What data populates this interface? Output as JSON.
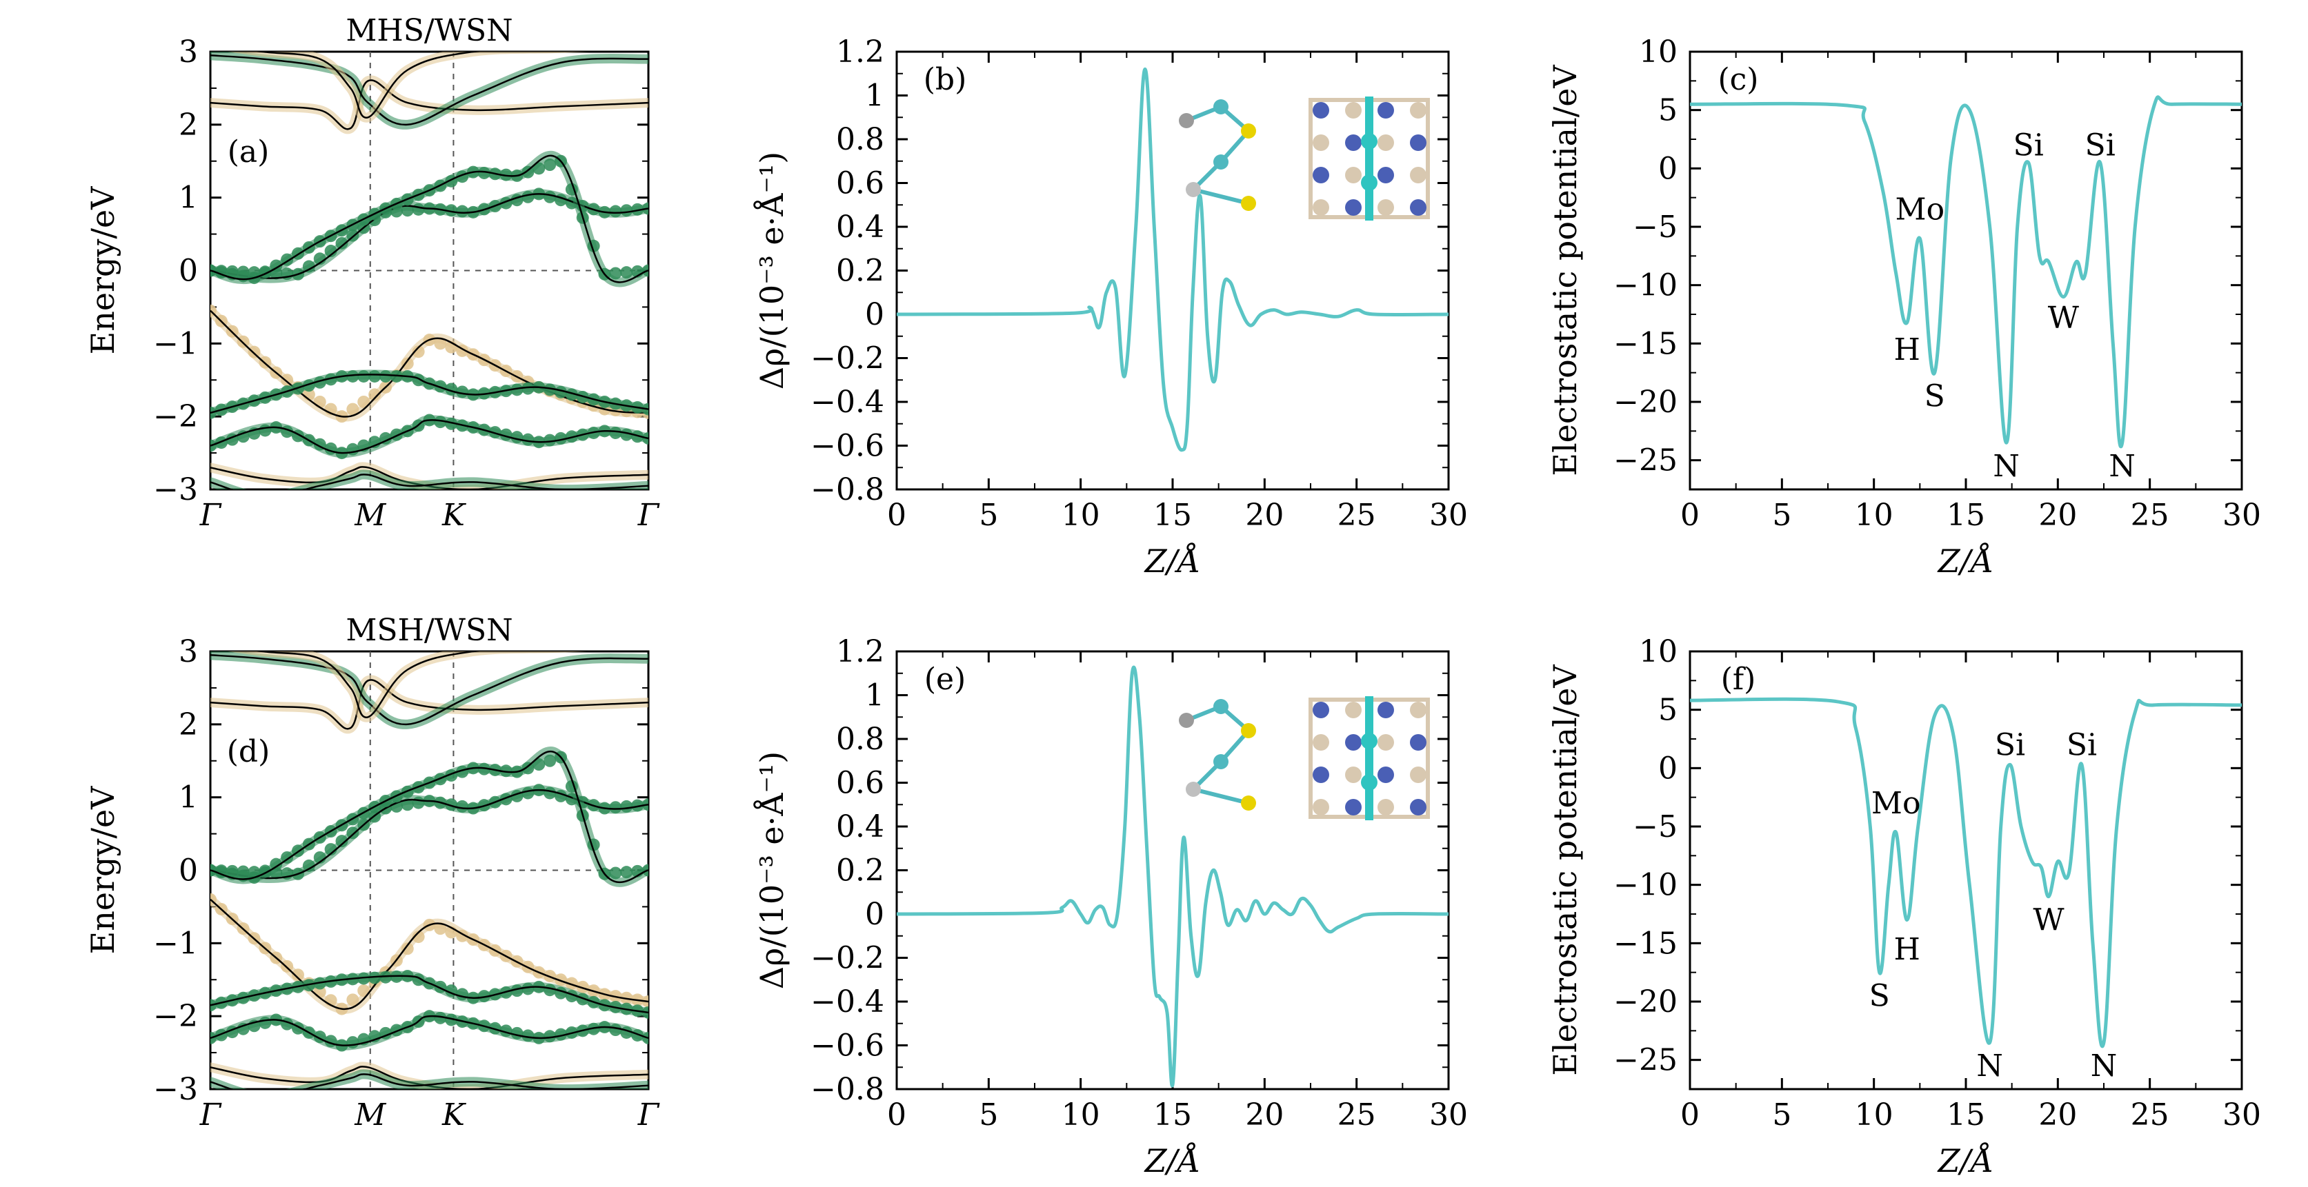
{
  "chart_data": [
    {
      "panel": "(a)",
      "type": "line",
      "title": "MHS/WSN",
      "ylabel": "Energy/eV",
      "xticks": [
        "Γ",
        "M",
        "K",
        "Γ"
      ],
      "ylim": [
        -3,
        3
      ],
      "yticks": [
        -3,
        -2,
        -1,
        0,
        1,
        2,
        3
      ],
      "colors": {
        "green": "#2e8b57",
        "tan": "#e0c48f",
        "line": "#000000"
      },
      "bands": [
        {
          "projection": "green",
          "x": [
            0,
            0.2,
            0.4,
            0.5,
            0.6,
            0.75,
            0.9,
            1.0
          ],
          "y": [
            0.0,
            -0.05,
            0.8,
            0.85,
            0.8,
            1.05,
            0.8,
            0.85
          ]
        },
        {
          "projection": "green",
          "x": [
            0,
            0.1,
            0.25,
            0.4,
            0.5,
            0.6,
            0.7,
            0.8,
            0.9,
            1.0
          ],
          "y": [
            0.0,
            -0.1,
            0.4,
            0.85,
            1.1,
            1.35,
            1.3,
            1.5,
            -0.05,
            0.0
          ]
        },
        {
          "projection": "tan",
          "x": [
            0,
            0.15,
            0.3,
            0.4,
            0.5,
            0.6,
            0.75,
            0.9,
            1.0
          ],
          "y": [
            -0.55,
            -1.4,
            -2.0,
            -1.6,
            -0.95,
            -1.15,
            -1.6,
            -1.9,
            -1.95
          ]
        },
        {
          "projection": "green",
          "x": [
            0,
            0.15,
            0.3,
            0.45,
            0.5,
            0.6,
            0.75,
            0.9,
            1.0
          ],
          "y": [
            -1.95,
            -1.7,
            -1.45,
            -1.45,
            -1.55,
            -1.7,
            -1.6,
            -1.8,
            -1.9
          ]
        },
        {
          "projection": "green",
          "x": [
            0,
            0.15,
            0.3,
            0.45,
            0.5,
            0.6,
            0.75,
            0.9,
            1.0
          ],
          "y": [
            -2.4,
            -2.15,
            -2.5,
            -2.2,
            -2.05,
            -2.15,
            -2.35,
            -2.2,
            -2.3
          ]
        }
      ]
    },
    {
      "panel": "(b)",
      "type": "line",
      "xlabel": "Z/Å",
      "ylabel": "Δρ/(10⁻³ e·Å⁻¹)",
      "xlim": [
        0,
        30
      ],
      "ylim": [
        -0.8,
        1.2
      ],
      "xticks": [
        0,
        5,
        10,
        15,
        20,
        25,
        30
      ],
      "yticks": [
        -0.8,
        -0.6,
        -0.4,
        -0.2,
        0,
        0.2,
        0.4,
        0.6,
        0.8,
        1.0,
        1.2
      ],
      "color": "#5bc5c5",
      "x": [
        0,
        9.5,
        10.5,
        11.0,
        11.4,
        11.9,
        12.4,
        13.0,
        13.5,
        14.0,
        14.5,
        15.0,
        15.5,
        15.8,
        16.1,
        16.5,
        16.9,
        17.3,
        17.7,
        18.1,
        18.6,
        19.2,
        19.8,
        20.5,
        21.2,
        22.0,
        23.0,
        24.0,
        25.0,
        26.0,
        30
      ],
      "y": [
        0,
        0.005,
        0.03,
        -0.06,
        0.1,
        0.12,
        -0.28,
        0.4,
        1.12,
        0.4,
        -0.32,
        -0.52,
        -0.62,
        -0.5,
        0.1,
        0.54,
        -0.1,
        -0.3,
        0.1,
        0.15,
        0.04,
        -0.05,
        0.0,
        0.02,
        0.0,
        0.01,
        0.0,
        -0.01,
        0.02,
        0.0,
        0
      ]
    },
    {
      "panel": "(c)",
      "type": "line",
      "xlabel": "Z/Å",
      "ylabel": "Electrostatic potential/eV",
      "xlim": [
        0,
        30
      ],
      "ylim": [
        -27.5,
        10
      ],
      "xticks": [
        0,
        5,
        10,
        15,
        20,
        25,
        30
      ],
      "yticks": [
        -25,
        -20,
        -15,
        -10,
        -5,
        0,
        5,
        10
      ],
      "color": "#5bc5c5",
      "x": [
        0,
        8.5,
        9.5,
        10.5,
        11.2,
        11.8,
        12.5,
        13.3,
        14.2,
        15.2,
        16.3,
        17.2,
        17.8,
        18.4,
        19.0,
        19.5,
        20.3,
        21.0,
        21.5,
        22.3,
        23.0,
        23.5,
        24.2,
        25.2,
        26.2,
        30
      ],
      "y": [
        5.5,
        5.4,
        4.0,
        -2,
        -9,
        -13.2,
        -6.0,
        -17.5,
        1.0,
        5.0,
        -5,
        -23.5,
        -5,
        0.5,
        -7.5,
        -8.0,
        -11.0,
        -8.0,
        -9,
        0.5,
        -15,
        -23.5,
        -5,
        5.2,
        5.5,
        5.5
      ],
      "annotations": [
        {
          "text": "H",
          "x": 11.8,
          "y": -15.5
        },
        {
          "text": "Mo",
          "x": 12.5,
          "y": -3.5
        },
        {
          "text": "S",
          "x": 13.3,
          "y": -19.5
        },
        {
          "text": "Si",
          "x": 18.4,
          "y": 2.0
        },
        {
          "text": "W",
          "x": 20.3,
          "y": -12.8
        },
        {
          "text": "N",
          "x": 17.2,
          "y": -25.5
        },
        {
          "text": "Si",
          "x": 22.3,
          "y": 2.0
        },
        {
          "text": "N",
          "x": 23.5,
          "y": -25.5
        }
      ]
    },
    {
      "panel": "(d)",
      "type": "line",
      "title": "MSH/WSN",
      "ylabel": "Energy/eV",
      "xticks": [
        "Γ",
        "M",
        "K",
        "Γ"
      ],
      "ylim": [
        -3,
        3
      ],
      "yticks": [
        -3,
        -2,
        -1,
        0,
        1,
        2,
        3
      ],
      "colors": {
        "green": "#2e8b57",
        "tan": "#e0c48f",
        "line": "#000000"
      },
      "bands": [
        {
          "projection": "green",
          "x": [
            0,
            0.2,
            0.4,
            0.5,
            0.6,
            0.75,
            0.9,
            1.0
          ],
          "y": [
            0.0,
            -0.05,
            0.85,
            0.95,
            0.85,
            1.1,
            0.85,
            0.9
          ]
        },
        {
          "projection": "green",
          "x": [
            0,
            0.1,
            0.25,
            0.4,
            0.5,
            0.6,
            0.7,
            0.8,
            0.9,
            1.0
          ],
          "y": [
            0.0,
            -0.1,
            0.45,
            0.95,
            1.2,
            1.4,
            1.35,
            1.55,
            -0.05,
            0.0
          ]
        },
        {
          "projection": "tan",
          "x": [
            0,
            0.15,
            0.3,
            0.4,
            0.5,
            0.6,
            0.75,
            0.9,
            1.0
          ],
          "y": [
            -0.4,
            -1.2,
            -1.9,
            -1.4,
            -0.75,
            -0.95,
            -1.4,
            -1.7,
            -1.8
          ]
        },
        {
          "projection": "green",
          "x": [
            0,
            0.15,
            0.3,
            0.45,
            0.5,
            0.6,
            0.75,
            0.9,
            1.0
          ],
          "y": [
            -1.85,
            -1.65,
            -1.5,
            -1.45,
            -1.55,
            -1.75,
            -1.6,
            -1.85,
            -1.95
          ]
        },
        {
          "projection": "green",
          "x": [
            0,
            0.15,
            0.3,
            0.45,
            0.5,
            0.6,
            0.75,
            0.9,
            1.0
          ],
          "y": [
            -2.3,
            -2.05,
            -2.4,
            -2.15,
            -2.0,
            -2.1,
            -2.3,
            -2.15,
            -2.3
          ]
        }
      ]
    },
    {
      "panel": "(e)",
      "type": "line",
      "xlabel": "Z/Å",
      "ylabel": "Δρ/(10⁻³ e·Å⁻¹)",
      "xlim": [
        0,
        30
      ],
      "ylim": [
        -0.8,
        1.2
      ],
      "xticks": [
        0,
        5,
        10,
        15,
        20,
        25,
        30
      ],
      "yticks": [
        -0.8,
        -0.6,
        -0.4,
        -0.2,
        0,
        0.2,
        0.4,
        0.6,
        0.8,
        1.0,
        1.2
      ],
      "color": "#5bc5c5",
      "x": [
        0,
        8.0,
        9.0,
        9.5,
        10.0,
        10.4,
        10.8,
        11.2,
        11.6,
        12.0,
        12.4,
        12.8,
        13.2,
        13.6,
        14.0,
        14.3,
        14.7,
        15.0,
        15.3,
        15.6,
        16.0,
        16.4,
        16.8,
        17.2,
        17.6,
        18.0,
        18.5,
        19.0,
        19.5,
        20.0,
        20.5,
        21.0,
        21.5,
        22.0,
        22.5,
        23.0,
        23.5,
        24.0,
        25.0,
        26.0,
        30
      ],
      "y": [
        0,
        0.005,
        0.03,
        0.06,
        0.0,
        -0.04,
        0.02,
        0.03,
        -0.05,
        0.0,
        0.4,
        1.1,
        0.9,
        0.3,
        -0.3,
        -0.38,
        -0.45,
        -0.78,
        -0.2,
        0.35,
        -0.1,
        -0.28,
        0.05,
        0.2,
        0.1,
        -0.05,
        0.02,
        -0.03,
        0.06,
        0.0,
        0.05,
        0.02,
        0.0,
        0.07,
        0.04,
        -0.03,
        -0.08,
        -0.06,
        -0.02,
        0.0,
        0
      ]
    },
    {
      "panel": "(f)",
      "type": "line",
      "xlabel": "Z/Å",
      "ylabel": "Electrostatic potential/eV",
      "xlim": [
        0,
        30
      ],
      "ylim": [
        -27.5,
        10
      ],
      "xticks": [
        0,
        5,
        10,
        15,
        20,
        25,
        30
      ],
      "yticks": [
        -25,
        -20,
        -15,
        -10,
        -5,
        0,
        5,
        10
      ],
      "color": "#5bc5c5",
      "x": [
        0,
        8.0,
        9.0,
        9.8,
        10.3,
        10.8,
        11.2,
        11.8,
        12.4,
        13.3,
        14.3,
        15.2,
        16.3,
        16.9,
        17.4,
        18.0,
        18.6,
        19.1,
        19.5,
        20.0,
        20.6,
        21.3,
        21.9,
        22.5,
        23.2,
        24.2,
        25.2,
        30
      ],
      "y": [
        5.8,
        5.7,
        3.5,
        -5,
        -17.5,
        -10,
        -5.5,
        -13,
        -5,
        4.5,
        3.0,
        -10,
        -23.5,
        -5,
        0.3,
        -5,
        -8.0,
        -8.5,
        -11.0,
        -8.0,
        -9,
        0.3,
        -15,
        -23.5,
        -5,
        4.8,
        5.4,
        5.4
      ],
      "annotations": [
        {
          "text": "S",
          "x": 10.3,
          "y": -19.5
        },
        {
          "text": "Mo",
          "x": 11.2,
          "y": -3.0
        },
        {
          "text": "H",
          "x": 11.8,
          "y": -15.5
        },
        {
          "text": "Si",
          "x": 17.4,
          "y": 2.0
        },
        {
          "text": "W",
          "x": 19.5,
          "y": -13.0
        },
        {
          "text": "N",
          "x": 16.3,
          "y": -25.5
        },
        {
          "text": "Si",
          "x": 21.3,
          "y": 2.0
        },
        {
          "text": "N",
          "x": 22.5,
          "y": -25.5
        }
      ]
    }
  ]
}
